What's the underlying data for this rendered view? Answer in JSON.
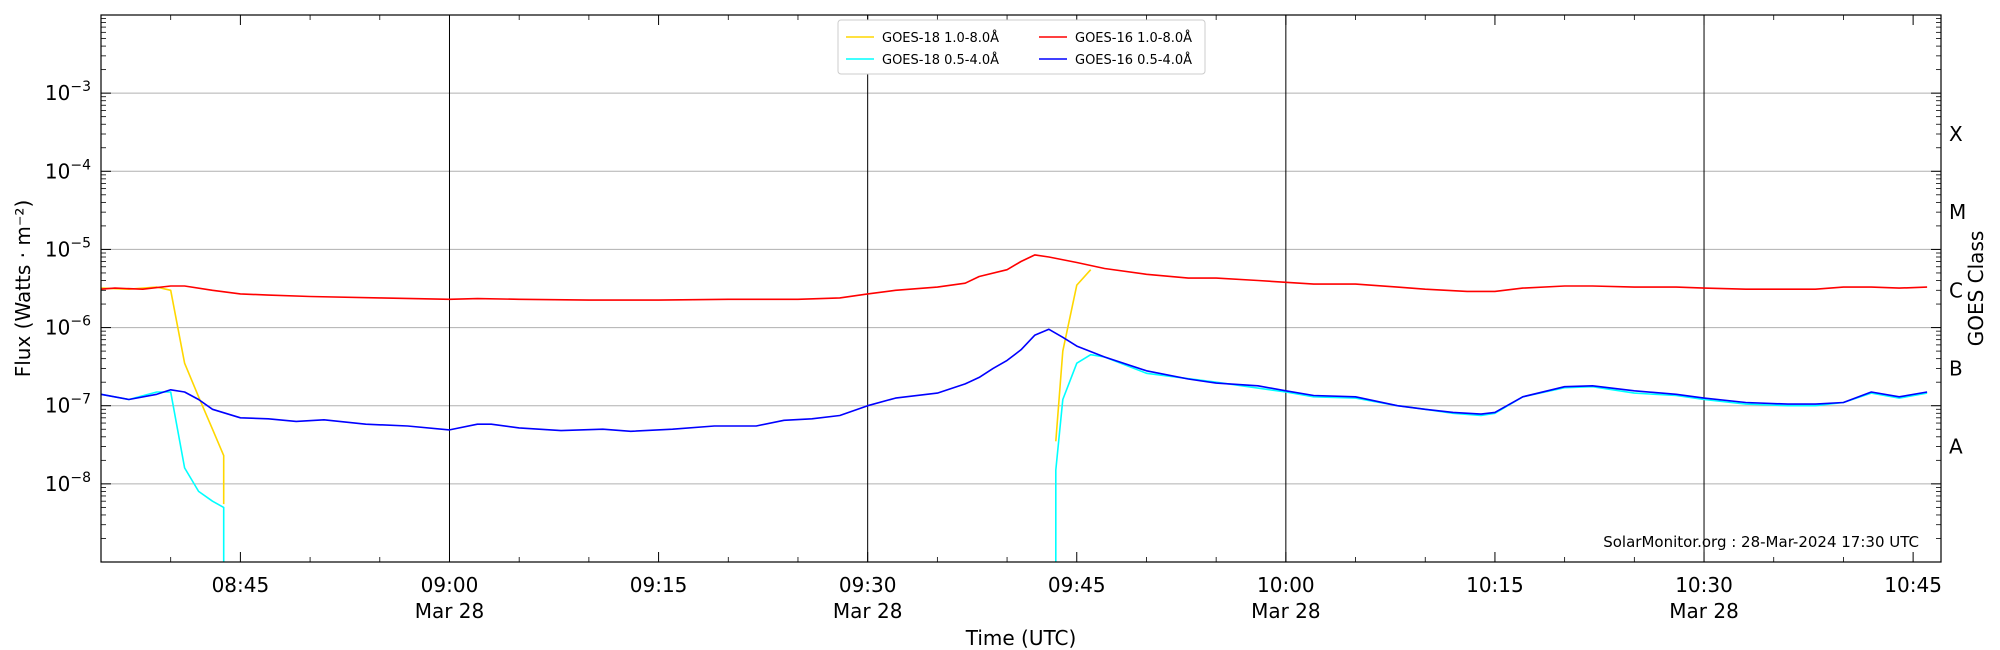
{
  "chart_data": {
    "type": "line",
    "title": "",
    "xlabel": "Time (UTC)",
    "ylabel": "Flux (Watts · m⁻²)",
    "right_axis_label": "GOES Class",
    "y_scale": "log",
    "ylim": [
      1e-09,
      0.01
    ],
    "xlim": [
      "08:35",
      "10:47"
    ],
    "grid": "horizontal major",
    "legend_position": "top-center",
    "y_ticks": [
      {
        "value": 1e-08,
        "label_base": "10",
        "label_exp": "−8"
      },
      {
        "value": 1e-07,
        "label_base": "10",
        "label_exp": "−7"
      },
      {
        "value": 1e-06,
        "label_base": "10",
        "label_exp": "−6"
      },
      {
        "value": 1e-05,
        "label_base": "10",
        "label_exp": "−5"
      },
      {
        "value": 0.0001,
        "label_base": "10",
        "label_exp": "−4"
      },
      {
        "value": 0.001,
        "label_base": "10",
        "label_exp": "−3"
      }
    ],
    "x_ticks": [
      {
        "time": "08:45",
        "label": "08:45",
        "sublabel": ""
      },
      {
        "time": "09:00",
        "label": "09:00",
        "sublabel": "Mar 28"
      },
      {
        "time": "09:15",
        "label": "09:15",
        "sublabel": ""
      },
      {
        "time": "09:30",
        "label": "09:30",
        "sublabel": "Mar 28"
      },
      {
        "time": "09:45",
        "label": "09:45",
        "sublabel": ""
      },
      {
        "time": "10:00",
        "label": "10:00",
        "sublabel": "Mar 28"
      },
      {
        "time": "10:15",
        "label": "10:15",
        "sublabel": ""
      },
      {
        "time": "10:30",
        "label": "10:30",
        "sublabel": "Mar 28"
      },
      {
        "time": "10:45",
        "label": "10:45",
        "sublabel": ""
      }
    ],
    "vertical_lines": [
      "09:00",
      "09:30",
      "10:00",
      "10:30"
    ],
    "goes_classes": [
      {
        "label": "A",
        "value": 3e-08
      },
      {
        "label": "B",
        "value": 3e-07
      },
      {
        "label": "C",
        "value": 3e-06
      },
      {
        "label": "M",
        "value": 3e-05
      },
      {
        "label": "X",
        "value": 0.0003
      }
    ],
    "credit": "SolarMonitor.org : 28-Mar-2024 17:30 UTC",
    "series": [
      {
        "name": "GOES-18 1.0-8.0Å",
        "color": "#ffd700",
        "segments": [
          [
            [
              "08:35",
              3.2e-06
            ],
            [
              "08:37",
              3.1e-06
            ],
            [
              "08:39",
              3.3e-06
            ],
            [
              "08:40",
              3e-06
            ],
            [
              "08:41",
              3.5e-07
            ],
            [
              "08:42",
              1.3e-07
            ],
            [
              "08:43",
              5e-08
            ],
            [
              "08:43.8",
              2.3e-08
            ],
            [
              "08:43.8",
              5.5e-09
            ]
          ],
          [
            [
              "09:43.5",
              3.5e-08
            ],
            [
              "09:44",
              5e-07
            ],
            [
              "09:45",
              3.5e-06
            ],
            [
              "09:46",
              5.5e-06
            ]
          ]
        ]
      },
      {
        "name": "GOES-16 1.0-8.0Å",
        "color": "#ff0000",
        "segments": [
          [
            [
              "08:35",
              3.1e-06
            ],
            [
              "08:36",
              3.2e-06
            ],
            [
              "08:38",
              3.1e-06
            ],
            [
              "08:40",
              3.4e-06
            ],
            [
              "08:41",
              3.4e-06
            ],
            [
              "08:43",
              3e-06
            ],
            [
              "08:45",
              2.7e-06
            ],
            [
              "08:47",
              2.6e-06
            ],
            [
              "08:50",
              2.5e-06
            ],
            [
              "08:55",
              2.4e-06
            ],
            [
              "09:00",
              2.3e-06
            ],
            [
              "09:02",
              2.35e-06
            ],
            [
              "09:05",
              2.3e-06
            ],
            [
              "09:10",
              2.25e-06
            ],
            [
              "09:15",
              2.25e-06
            ],
            [
              "09:20",
              2.3e-06
            ],
            [
              "09:25",
              2.3e-06
            ],
            [
              "09:28",
              2.4e-06
            ],
            [
              "09:30",
              2.7e-06
            ],
            [
              "09:32",
              3e-06
            ],
            [
              "09:35",
              3.3e-06
            ],
            [
              "09:37",
              3.7e-06
            ],
            [
              "09:38",
              4.5e-06
            ],
            [
              "09:40",
              5.5e-06
            ],
            [
              "09:41",
              7e-06
            ],
            [
              "09:42",
              8.5e-06
            ],
            [
              "09:43",
              8e-06
            ],
            [
              "09:45",
              6.8e-06
            ],
            [
              "09:47",
              5.7e-06
            ],
            [
              "09:50",
              4.8e-06
            ],
            [
              "09:53",
              4.3e-06
            ],
            [
              "09:55",
              4.3e-06
            ],
            [
              "09:58",
              4e-06
            ],
            [
              "10:00",
              3.8e-06
            ],
            [
              "10:02",
              3.6e-06
            ],
            [
              "10:05",
              3.6e-06
            ],
            [
              "10:08",
              3.3e-06
            ],
            [
              "10:10",
              3.1e-06
            ],
            [
              "10:13",
              2.9e-06
            ],
            [
              "10:15",
              2.9e-06
            ],
            [
              "10:17",
              3.2e-06
            ],
            [
              "10:20",
              3.4e-06
            ],
            [
              "10:22",
              3.4e-06
            ],
            [
              "10:25",
              3.3e-06
            ],
            [
              "10:28",
              3.3e-06
            ],
            [
              "10:30",
              3.2e-06
            ],
            [
              "10:33",
              3.1e-06
            ],
            [
              "10:35",
              3.1e-06
            ],
            [
              "10:38",
              3.1e-06
            ],
            [
              "10:40",
              3.3e-06
            ],
            [
              "10:42",
              3.3e-06
            ],
            [
              "10:44",
              3.2e-06
            ],
            [
              "10:46",
              3.3e-06
            ]
          ]
        ]
      },
      {
        "name": "GOES-18 0.5-4.0Å",
        "color": "#00ffff",
        "segments": [
          [
            [
              "08:35",
              1.4e-07
            ],
            [
              "08:37",
              1.2e-07
            ],
            [
              "08:39",
              1.5e-07
            ],
            [
              "08:40",
              1.5e-07
            ],
            [
              "08:41",
              1.6e-08
            ],
            [
              "08:42",
              8e-09
            ],
            [
              "08:43",
              6e-09
            ],
            [
              "08:43.8",
              5e-09
            ],
            [
              "08:43.8",
              1e-09
            ]
          ],
          [
            [
              "09:43.5",
              1e-09
            ],
            [
              "09:43.5",
              1.5e-08
            ],
            [
              "09:44",
              1.2e-07
            ],
            [
              "09:45",
              3.5e-07
            ],
            [
              "09:46",
              4.5e-07
            ],
            [
              "09:47",
              4.2e-07
            ],
            [
              "09:50",
              2.6e-07
            ],
            [
              "09:55",
              2e-07
            ],
            [
              "10:00",
              1.5e-07
            ],
            [
              "10:02",
              1.3e-07
            ],
            [
              "10:05",
              1.25e-07
            ],
            [
              "10:08",
              1e-07
            ],
            [
              "10:10",
              9e-08
            ],
            [
              "10:12",
              8e-08
            ],
            [
              "10:14",
              7.5e-08
            ],
            [
              "10:15",
              8e-08
            ],
            [
              "10:17",
              1.3e-07
            ],
            [
              "10:20",
              1.7e-07
            ],
            [
              "10:22",
              1.75e-07
            ],
            [
              "10:25",
              1.45e-07
            ],
            [
              "10:28",
              1.35e-07
            ],
            [
              "10:30",
              1.2e-07
            ],
            [
              "10:33",
              1.05e-07
            ],
            [
              "10:36",
              1e-07
            ],
            [
              "10:38",
              1e-07
            ],
            [
              "10:40",
              1.1e-07
            ],
            [
              "10:42",
              1.45e-07
            ],
            [
              "10:44",
              1.25e-07
            ],
            [
              "10:46",
              1.45e-07
            ]
          ]
        ]
      },
      {
        "name": "GOES-16 0.5-4.0Å",
        "color": "#0000ff",
        "segments": [
          [
            [
              "08:35",
              1.4e-07
            ],
            [
              "08:37",
              1.2e-07
            ],
            [
              "08:39",
              1.4e-07
            ],
            [
              "08:40",
              1.6e-07
            ],
            [
              "08:41",
              1.5e-07
            ],
            [
              "08:42",
              1.2e-07
            ],
            [
              "08:43",
              9e-08
            ],
            [
              "08:45",
              7e-08
            ],
            [
              "08:47",
              6.8e-08
            ],
            [
              "08:49",
              6.3e-08
            ],
            [
              "08:51",
              6.6e-08
            ],
            [
              "08:54",
              5.8e-08
            ],
            [
              "08:57",
              5.5e-08
            ],
            [
              "09:00",
              4.9e-08
            ],
            [
              "09:02",
              5.8e-08
            ],
            [
              "09:03",
              5.8e-08
            ],
            [
              "09:05",
              5.2e-08
            ],
            [
              "09:08",
              4.8e-08
            ],
            [
              "09:11",
              5e-08
            ],
            [
              "09:13",
              4.7e-08
            ],
            [
              "09:16",
              5e-08
            ],
            [
              "09:19",
              5.5e-08
            ],
            [
              "09:22",
              5.5e-08
            ],
            [
              "09:24",
              6.5e-08
            ],
            [
              "09:26",
              6.8e-08
            ],
            [
              "09:28",
              7.5e-08
            ],
            [
              "09:30",
              1e-07
            ],
            [
              "09:32",
              1.25e-07
            ],
            [
              "09:35",
              1.45e-07
            ],
            [
              "09:37",
              1.9e-07
            ],
            [
              "09:38",
              2.3e-07
            ],
            [
              "09:39",
              3e-07
            ],
            [
              "09:40",
              3.8e-07
            ],
            [
              "09:41",
              5.2e-07
            ],
            [
              "09:42",
              8e-07
            ],
            [
              "09:43",
              9.5e-07
            ],
            [
              "09:44",
              7.5e-07
            ],
            [
              "09:45",
              5.8e-07
            ],
            [
              "09:47",
              4.2e-07
            ],
            [
              "09:50",
              2.8e-07
            ],
            [
              "09:53",
              2.2e-07
            ],
            [
              "09:55",
              1.95e-07
            ],
            [
              "09:58",
              1.8e-07
            ],
            [
              "10:00",
              1.55e-07
            ],
            [
              "10:02",
              1.35e-07
            ],
            [
              "10:05",
              1.3e-07
            ],
            [
              "10:08",
              1e-07
            ],
            [
              "10:10",
              9e-08
            ],
            [
              "10:12",
              8.2e-08
            ],
            [
              "10:14",
              7.8e-08
            ],
            [
              "10:15",
              8.2e-08
            ],
            [
              "10:17",
              1.3e-07
            ],
            [
              "10:20",
              1.75e-07
            ],
            [
              "10:22",
              1.8e-07
            ],
            [
              "10:25",
              1.55e-07
            ],
            [
              "10:28",
              1.4e-07
            ],
            [
              "10:30",
              1.25e-07
            ],
            [
              "10:33",
              1.1e-07
            ],
            [
              "10:36",
              1.05e-07
            ],
            [
              "10:38",
              1.05e-07
            ],
            [
              "10:40",
              1.1e-07
            ],
            [
              "10:42",
              1.5e-07
            ],
            [
              "10:44",
              1.3e-07
            ],
            [
              "10:46",
              1.5e-07
            ]
          ]
        ]
      }
    ]
  }
}
